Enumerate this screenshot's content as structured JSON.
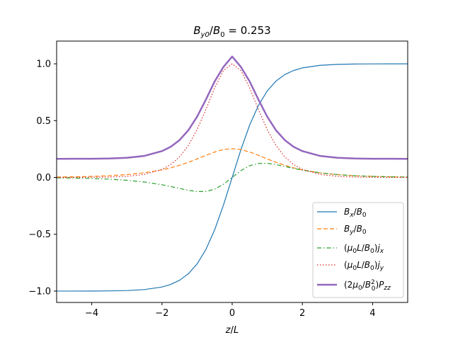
{
  "chart_data": {
    "type": "line",
    "title": "B_y0/B_0 = 0.253",
    "xlabel": "z/L",
    "ylabel": "",
    "xlim": [
      -5,
      5
    ],
    "ylim": [
      -1.1,
      1.2
    ],
    "x_ticks": [
      -4,
      -2,
      0,
      2,
      4
    ],
    "x_tick_labels": [
      "−4",
      "−2",
      "0",
      "2",
      "4"
    ],
    "y_ticks": [
      -1.0,
      -0.5,
      0.0,
      0.5,
      1.0
    ],
    "y_tick_labels": [
      "−1.0",
      "−0.5",
      "0.0",
      "0.5",
      "1.0"
    ],
    "grid": false,
    "legend_position": "lower-right",
    "x": [
      -5,
      -4.5,
      -4,
      -3.5,
      -3,
      -2.5,
      -2,
      -1.75,
      -1.5,
      -1.25,
      -1,
      -0.75,
      -0.5,
      -0.25,
      0,
      0.25,
      0.5,
      0.75,
      1,
      1.25,
      1.5,
      1.75,
      2,
      2.5,
      3,
      3.5,
      4,
      4.5,
      5
    ],
    "series": [
      {
        "name": "B_x/B_0",
        "color": "#1f77b4",
        "style": "solid",
        "width": 1.2,
        "values": [
          -1.0,
          -0.9998,
          -0.9993,
          -0.9982,
          -0.9951,
          -0.9866,
          -0.964,
          -0.9414,
          -0.9051,
          -0.8483,
          -0.7616,
          -0.6351,
          -0.4621,
          -0.2449,
          0.0,
          0.2449,
          0.4621,
          0.6351,
          0.7616,
          0.8483,
          0.9051,
          0.9414,
          0.964,
          0.9866,
          0.9951,
          0.9982,
          0.9993,
          0.9998,
          1.0
        ]
      },
      {
        "name": "B_y/B_0",
        "color": "#ff7f0e",
        "style": "dashed",
        "width": 1.2,
        "values": [
          0.0034,
          0.0056,
          0.0093,
          0.0152,
          0.025,
          0.041,
          0.0666,
          0.0847,
          0.1068,
          0.1332,
          0.163,
          0.1943,
          0.2237,
          0.2459,
          0.253,
          0.2459,
          0.2237,
          0.1943,
          0.163,
          0.1332,
          0.1068,
          0.0847,
          0.0666,
          0.041,
          0.025,
          0.0152,
          0.0093,
          0.0056,
          0.0034
        ]
      },
      {
        "name": "(μ_0 L/B_0) j_x",
        "color": "#2ca02c",
        "style": "dashdot",
        "width": 1.2,
        "values": [
          -0.0034,
          -0.0056,
          -0.0093,
          -0.0152,
          -0.0249,
          -0.0404,
          -0.0642,
          -0.0797,
          -0.0967,
          -0.1129,
          -0.1241,
          -0.1234,
          -0.1034,
          -0.0602,
          0.0,
          0.0602,
          0.1034,
          0.1234,
          0.1241,
          0.1129,
          0.0967,
          0.0797,
          0.0642,
          0.0404,
          0.0249,
          0.0152,
          0.0093,
          0.0056,
          0.0034
        ]
      },
      {
        "name": "(μ_0 L/B_0) j_y",
        "color": "#d62728",
        "style": "dotted",
        "width": 1.2,
        "values": [
          0.0002,
          0.0005,
          0.0013,
          0.0036,
          0.0099,
          0.0266,
          0.0707,
          0.1138,
          0.1808,
          0.2804,
          0.42,
          0.5966,
          0.7864,
          0.94,
          1.0,
          0.94,
          0.7864,
          0.5966,
          0.42,
          0.2804,
          0.1808,
          0.1138,
          0.0707,
          0.0266,
          0.0099,
          0.0036,
          0.0013,
          0.0005,
          0.0002
        ]
      },
      {
        "name": "(2μ_0/B_0²) P_zz",
        "color": "#9467bd",
        "style": "solid",
        "width": 2.5,
        "values": [
          0.164,
          0.1645,
          0.1648,
          0.167,
          0.1732,
          0.1898,
          0.2318,
          0.2698,
          0.3284,
          0.4146,
          0.5343,
          0.6839,
          0.8438,
          0.9719,
          1.064,
          0.9719,
          0.8438,
          0.6839,
          0.5343,
          0.4146,
          0.3284,
          0.2698,
          0.2318,
          0.1898,
          0.1732,
          0.167,
          0.1648,
          0.1645,
          0.164
        ]
      }
    ]
  }
}
